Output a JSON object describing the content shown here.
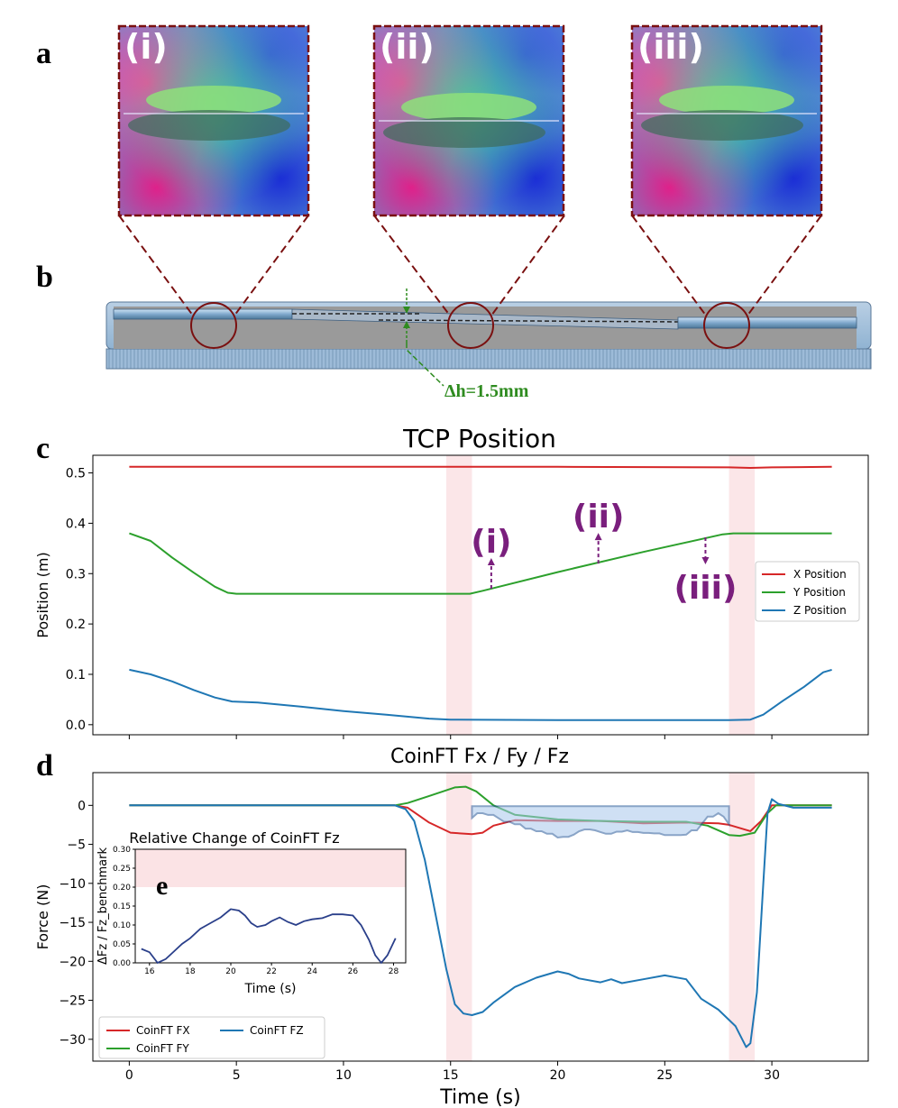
{
  "panel_letters": {
    "a": "a",
    "b": "b",
    "c": "c",
    "d": "d",
    "e": "e"
  },
  "image_labels": [
    "(i)",
    "(ii)",
    "(iii)"
  ],
  "delta_h_label": "Δh=1.5mm",
  "colors": {
    "x": "#d62728",
    "y": "#2ca02c",
    "z": "#1f77b4",
    "annot": "#7a1f7d",
    "frame": "#7a1010",
    "shade": "#fbe3e5",
    "inset_line": "#2a3f8a"
  },
  "chart_data": [
    {
      "type": "line",
      "title": "TCP Position",
      "xlabel": "",
      "ylabel": "Position (m)",
      "xlim": [
        -1.7,
        34.5
      ],
      "ylim": [
        -0.02,
        0.535
      ],
      "xticks": [
        0,
        5,
        10,
        15,
        20,
        25,
        30
      ],
      "yticks": [
        0.0,
        0.1,
        0.2,
        0.3,
        0.4,
        0.5
      ],
      "ytick_labels": [
        "0.0",
        "0.1",
        "0.2",
        "0.3",
        "0.4",
        "0.5"
      ],
      "shaded_ranges": [
        [
          14.8,
          16.0
        ],
        [
          28.0,
          29.2
        ]
      ],
      "legend": {
        "position": "right",
        "entries": [
          "X Position",
          "Y Position",
          "Z Position"
        ]
      },
      "series": [
        {
          "name": "X Position",
          "color": "#d62728",
          "points": [
            [
              0,
              0.512
            ],
            [
              10,
              0.512
            ],
            [
              20,
              0.512
            ],
            [
              28,
              0.511
            ],
            [
              29,
              0.51
            ],
            [
              30,
              0.511
            ],
            [
              32.8,
              0.512
            ]
          ]
        },
        {
          "name": "Y Position",
          "color": "#2ca02c",
          "points": [
            [
              0,
              0.38
            ],
            [
              1,
              0.365
            ],
            [
              2,
              0.332
            ],
            [
              3,
              0.302
            ],
            [
              4,
              0.274
            ],
            [
              4.6,
              0.262
            ],
            [
              5,
              0.26
            ],
            [
              10,
              0.26
            ],
            [
              15,
              0.26
            ],
            [
              15.9,
              0.26
            ],
            [
              16.5,
              0.266
            ],
            [
              20,
              0.303
            ],
            [
              24,
              0.343
            ],
            [
              27.7,
              0.378
            ],
            [
              28.2,
              0.38
            ],
            [
              32.8,
              0.38
            ]
          ]
        },
        {
          "name": "Z Position",
          "color": "#1f77b4",
          "points": [
            [
              0,
              0.109
            ],
            [
              1,
              0.1
            ],
            [
              2,
              0.086
            ],
            [
              3,
              0.069
            ],
            [
              4,
              0.054
            ],
            [
              4.8,
              0.046
            ],
            [
              6,
              0.044
            ],
            [
              8,
              0.036
            ],
            [
              10,
              0.027
            ],
            [
              12,
              0.02
            ],
            [
              14,
              0.012
            ],
            [
              15,
              0.01
            ],
            [
              20,
              0.009
            ],
            [
              28,
              0.009
            ],
            [
              29,
              0.01
            ],
            [
              29.6,
              0.02
            ],
            [
              30.5,
              0.047
            ],
            [
              31.5,
              0.075
            ],
            [
              32.4,
              0.104
            ],
            [
              32.8,
              0.109
            ]
          ]
        }
      ],
      "annotations": [
        {
          "text": "(i)",
          "target": [
            16.9,
            0.27
          ],
          "text_pos": [
            16.9,
            0.322
          ],
          "dir": "up"
        },
        {
          "text": "(ii)",
          "target": [
            21.9,
            0.32
          ],
          "text_pos": [
            21.9,
            0.38
          ],
          "dir": "up"
        },
        {
          "text": "(iii)",
          "target": [
            26.9,
            0.372
          ],
          "text_pos": [
            26.9,
            0.325
          ],
          "dir": "down"
        }
      ]
    },
    {
      "type": "line",
      "title": "CoinFT Fx / Fy / Fz",
      "xlabel": "Time (s)",
      "ylabel": "Force (N)",
      "xlim": [
        -1.7,
        34.5
      ],
      "ylim": [
        -32.8,
        4.2
      ],
      "xticks": [
        0,
        5,
        10,
        15,
        20,
        25,
        30
      ],
      "yticks": [
        0,
        -5,
        -10,
        -15,
        -20,
        -25,
        -30
      ],
      "xtick_labels": [
        "0",
        "5",
        "10",
        "15",
        "20",
        "25",
        "30"
      ],
      "ytick_labels": [
        "0",
        "−5",
        "−10",
        "−15",
        "−20",
        "−25",
        "−30"
      ],
      "shaded_ranges": [
        [
          14.8,
          16.0
        ],
        [
          28.0,
          29.2
        ]
      ],
      "legend": {
        "position": "bottom-left",
        "entries": [
          "CoinFT FX",
          "CoinFT FY",
          "CoinFT FZ"
        ]
      },
      "series": [
        {
          "name": "CoinFT FX",
          "color": "#d62728",
          "points": [
            [
              0,
              0
            ],
            [
              12.4,
              0
            ],
            [
              13,
              -0.3
            ],
            [
              14,
              -2.2
            ],
            [
              15,
              -3.5
            ],
            [
              16,
              -3.7
            ],
            [
              16.5,
              -3.5
            ],
            [
              17,
              -2.6
            ],
            [
              18,
              -1.9
            ],
            [
              20,
              -2.0
            ],
            [
              22,
              -2.0
            ],
            [
              24,
              -2.3
            ],
            [
              26,
              -2.2
            ],
            [
              27.5,
              -2.3
            ],
            [
              28,
              -2.5
            ],
            [
              29,
              -3.3
            ],
            [
              29.5,
              -2.0
            ],
            [
              30,
              0
            ],
            [
              32.8,
              0
            ]
          ]
        },
        {
          "name": "CoinFT FY",
          "color": "#2ca02c",
          "points": [
            [
              0,
              0
            ],
            [
              12.4,
              0
            ],
            [
              13,
              0.3
            ],
            [
              14,
              1.2
            ],
            [
              15.2,
              2.3
            ],
            [
              15.7,
              2.4
            ],
            [
              16.2,
              1.8
            ],
            [
              17,
              0
            ],
            [
              18,
              -1.2
            ],
            [
              20,
              -1.8
            ],
            [
              22,
              -2.0
            ],
            [
              24,
              -2.1
            ],
            [
              26,
              -2.1
            ],
            [
              27,
              -2.6
            ],
            [
              28,
              -3.8
            ],
            [
              28.5,
              -3.9
            ],
            [
              29.2,
              -3.5
            ],
            [
              29.8,
              -1.0
            ],
            [
              30.2,
              0
            ],
            [
              32.8,
              0
            ]
          ]
        },
        {
          "name": "CoinFT FZ",
          "color": "#1f77b4",
          "points": [
            [
              0,
              0
            ],
            [
              12.4,
              0
            ],
            [
              12.9,
              -0.5
            ],
            [
              13.3,
              -2
            ],
            [
              13.8,
              -7
            ],
            [
              14.3,
              -14
            ],
            [
              14.8,
              -21
            ],
            [
              15.2,
              -25.5
            ],
            [
              15.6,
              -26.7
            ],
            [
              16,
              -26.9
            ],
            [
              16.5,
              -26.5
            ],
            [
              17,
              -25.3
            ],
            [
              18,
              -23.3
            ],
            [
              19,
              -22.1
            ],
            [
              20,
              -21.3
            ],
            [
              20.5,
              -21.6
            ],
            [
              21,
              -22.2
            ],
            [
              22,
              -22.7
            ],
            [
              22.5,
              -22.3
            ],
            [
              23,
              -22.8
            ],
            [
              24,
              -22.3
            ],
            [
              25,
              -21.8
            ],
            [
              26,
              -22.3
            ],
            [
              26.7,
              -24.8
            ],
            [
              27.5,
              -26.2
            ],
            [
              28.3,
              -28.3
            ],
            [
              28.8,
              -31
            ],
            [
              29,
              -30.5
            ],
            [
              29.3,
              -24
            ],
            [
              29.6,
              -10
            ],
            [
              29.8,
              -1
            ],
            [
              30,
              0.8
            ],
            [
              30.3,
              0.2
            ],
            [
              31,
              -0.3
            ],
            [
              32.8,
              -0.3
            ]
          ]
        }
      ],
      "inset": {
        "type": "line",
        "title": "Relative Change of CoinFT Fz",
        "xlabel": "Time (s)",
        "ylabel": "ΔFz / Fz_benchmark",
        "xlim": [
          15.3,
          28.6
        ],
        "ylim": [
          0.0,
          0.3
        ],
        "xticks": [
          16,
          18,
          20,
          22,
          24,
          26,
          28
        ],
        "xtick_labels": [
          "16",
          "18",
          "20",
          "22",
          "24",
          "26",
          "28"
        ],
        "yticks": [
          0.0,
          0.05,
          0.1,
          0.15,
          0.2,
          0.25,
          0.3
        ],
        "ytick_labels": [
          "0.00",
          "0.05",
          "0.10",
          "0.15",
          "0.20",
          "0.25",
          "0.30"
        ],
        "shade_above": 0.2,
        "series": [
          {
            "name": "ΔFz",
            "color": "#2a3f8a",
            "points": [
              [
                15.6,
                0.037
              ],
              [
                16,
                0.028
              ],
              [
                16.4,
                0.0
              ],
              [
                16.8,
                0.01
              ],
              [
                17.2,
                0.03
              ],
              [
                17.6,
                0.05
              ],
              [
                18,
                0.065
              ],
              [
                18.5,
                0.09
              ],
              [
                19,
                0.105
              ],
              [
                19.5,
                0.12
              ],
              [
                20,
                0.142
              ],
              [
                20.4,
                0.138
              ],
              [
                20.7,
                0.125
              ],
              [
                21,
                0.105
              ],
              [
                21.3,
                0.095
              ],
              [
                21.7,
                0.1
              ],
              [
                22,
                0.11
              ],
              [
                22.4,
                0.12
              ],
              [
                22.8,
                0.108
              ],
              [
                23.2,
                0.1
              ],
              [
                23.6,
                0.11
              ],
              [
                24,
                0.115
              ],
              [
                24.5,
                0.118
              ],
              [
                25,
                0.128
              ],
              [
                25.5,
                0.128
              ],
              [
                26,
                0.125
              ],
              [
                26.4,
                0.1
              ],
              [
                26.8,
                0.06
              ],
              [
                27.1,
                0.02
              ],
              [
                27.4,
                0.0
              ],
              [
                27.7,
                0.02
              ],
              [
                28.1,
                0.065
              ]
            ]
          }
        ]
      },
      "callout_range": [
        16.0,
        28.0
      ]
    }
  ]
}
